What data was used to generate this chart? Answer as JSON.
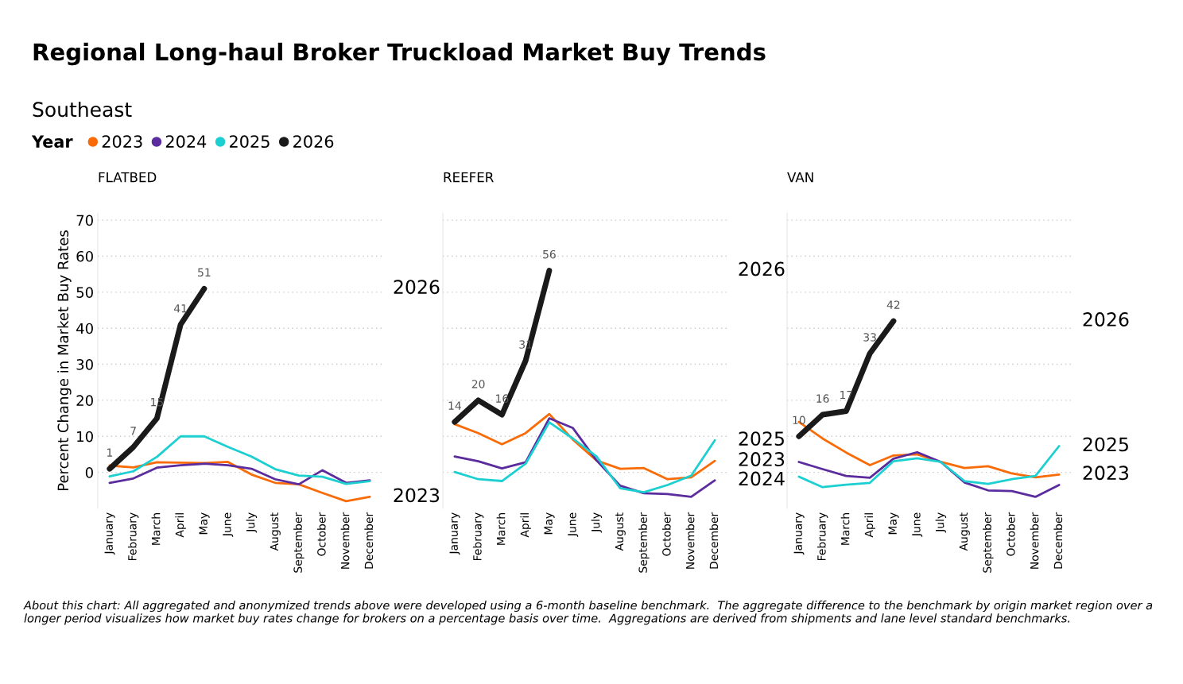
{
  "chart_data": [
    {
      "type": "other",
      "title": "Regional Long-haul Broker Truckload Market Buy Trends",
      "subtitle": "Southeast",
      "annotations": [
        "About this chart: All aggregated and anonymized trends above were developed using a 6-month baseline benchmark.  The aggregate difference to the benchmark by origin market region over a longer period visualizes how market buy rates change for brokers on a percentage basis over time.  Aggregations are derived from shipments and lane level standard benchmarks."
      ]
    },
    {
      "type": "line",
      "title": "FLATBED",
      "ylabel": "Percent Change in Market Buy Rates",
      "legend_title": "Year",
      "legend": "top left",
      "grid": "y",
      "marker": "none",
      "line_style": "solid",
      "categories": [
        "January",
        "February",
        "March",
        "April",
        "May",
        "June",
        "July",
        "August",
        "September",
        "October",
        "November",
        "December"
      ],
      "ylim": [
        -10,
        72
      ],
      "yticks": [
        0,
        10,
        20,
        30,
        40,
        50,
        60,
        70
      ],
      "series": [
        {
          "name": "2023",
          "color": "#f96b07",
          "values": [
            1.9,
            1.4,
            2.8,
            2.7,
            2.6,
            2.9,
            -0.6,
            -2.9,
            -3.3,
            -5.7,
            -8.0,
            -6.8
          ]
        },
        {
          "name": "2024",
          "color": "#5b2c9e",
          "values": [
            -2.9,
            -1.7,
            1.3,
            2.0,
            2.4,
            2.0,
            1.0,
            -1.9,
            -3.3,
            0.6,
            -2.9,
            -2.2
          ]
        },
        {
          "name": "2025",
          "color": "#1ccfd0",
          "values": [
            -1.1,
            0.3,
            4.3,
            10,
            10,
            7.1,
            4.4,
            0.9,
            -0.9,
            -1.2,
            -3.2,
            -2.4
          ]
        },
        {
          "name": "2026",
          "color": "#1a1a1a",
          "values": [
            1,
            7,
            15,
            41,
            51,
            null,
            null,
            null,
            null,
            null,
            null,
            null
          ],
          "value_labels": [
            "1",
            "7",
            "15",
            "41",
            "51",
            null,
            null,
            null,
            null,
            null,
            null,
            null
          ]
        }
      ],
      "tick_labels": true
    },
    {
      "type": "line",
      "title": "REEFER",
      "grid": "y",
      "marker": "none",
      "line_style": "solid",
      "tick_labels": "x",
      "categories": [
        "January",
        "February",
        "March",
        "April",
        "May",
        "June",
        "July",
        "August",
        "September",
        "October",
        "November",
        "December"
      ],
      "ylim": [
        -10,
        72
      ],
      "yticks": [
        0,
        10,
        20,
        30,
        40,
        50,
        60,
        70
      ],
      "series": [
        {
          "name": "2023",
          "color": "#f96b07",
          "values": [
            13.4,
            10.9,
            7.8,
            10.9,
            16.2,
            9.1,
            3.3,
            1.0,
            1.2,
            -1.9,
            -1.4,
            3.2
          ]
        },
        {
          "name": "2024",
          "color": "#5b2c9e",
          "values": [
            4.4,
            3.1,
            1.1,
            2.8,
            15.0,
            12.3,
            3.3,
            -3.7,
            -5.8,
            -6.0,
            -6.8,
            -2.2
          ]
        },
        {
          "name": "2025",
          "color": "#1ccfd0",
          "values": [
            0.1,
            -1.9,
            -2.4,
            2.4,
            13.9,
            9.4,
            4.4,
            -4.4,
            -5.5,
            -3.5,
            -0.9,
            8.9
          ]
        },
        {
          "name": "2026",
          "color": "#1a1a1a",
          "values": [
            14,
            20,
            16,
            31,
            56,
            null,
            null,
            null,
            null,
            null,
            null,
            null
          ],
          "value_labels": [
            "14",
            "20",
            "16",
            "31",
            "56",
            null,
            null,
            null,
            null,
            null,
            null,
            null
          ]
        }
      ],
      "legend": false
    },
    {
      "type": "line",
      "title": "VAN",
      "grid": "y",
      "marker": "none",
      "line_style": "solid",
      "tick_labels": "x",
      "categories": [
        "January",
        "February",
        "March",
        "April",
        "May",
        "June",
        "July",
        "August",
        "September",
        "October",
        "November",
        "December"
      ],
      "ylim": [
        -10,
        72
      ],
      "yticks": [
        0,
        10,
        20,
        30,
        40,
        50,
        60,
        70
      ],
      "series": [
        {
          "name": "2023",
          "color": "#f96b07",
          "values": [
            14.0,
            9.4,
            5.5,
            2.0,
            4.7,
            5.0,
            2.9,
            1.2,
            1.7,
            -0.3,
            -1.4,
            -0.6
          ]
        },
        {
          "name": "2024",
          "color": "#5b2c9e",
          "values": [
            2.9,
            0.9,
            -1.0,
            -1.5,
            3.8,
            5.6,
            2.9,
            -2.8,
            -5.0,
            -5.2,
            -6.8,
            -3.5
          ]
        },
        {
          "name": "2025",
          "color": "#1ccfd0",
          "values": [
            -1.2,
            -4.1,
            -3.4,
            -2.9,
            3.1,
            3.9,
            2.9,
            -2.4,
            -3.2,
            -1.9,
            -1.0,
            7.3
          ]
        },
        {
          "name": "2026",
          "color": "#1a1a1a",
          "values": [
            10,
            16,
            17,
            33,
            42,
            null,
            null,
            null,
            null,
            null,
            null,
            null
          ],
          "value_labels": [
            "10",
            "16",
            "17",
            "33",
            "42",
            null,
            null,
            null,
            null,
            null,
            null,
            null
          ]
        }
      ],
      "legend": false
    }
  ]
}
